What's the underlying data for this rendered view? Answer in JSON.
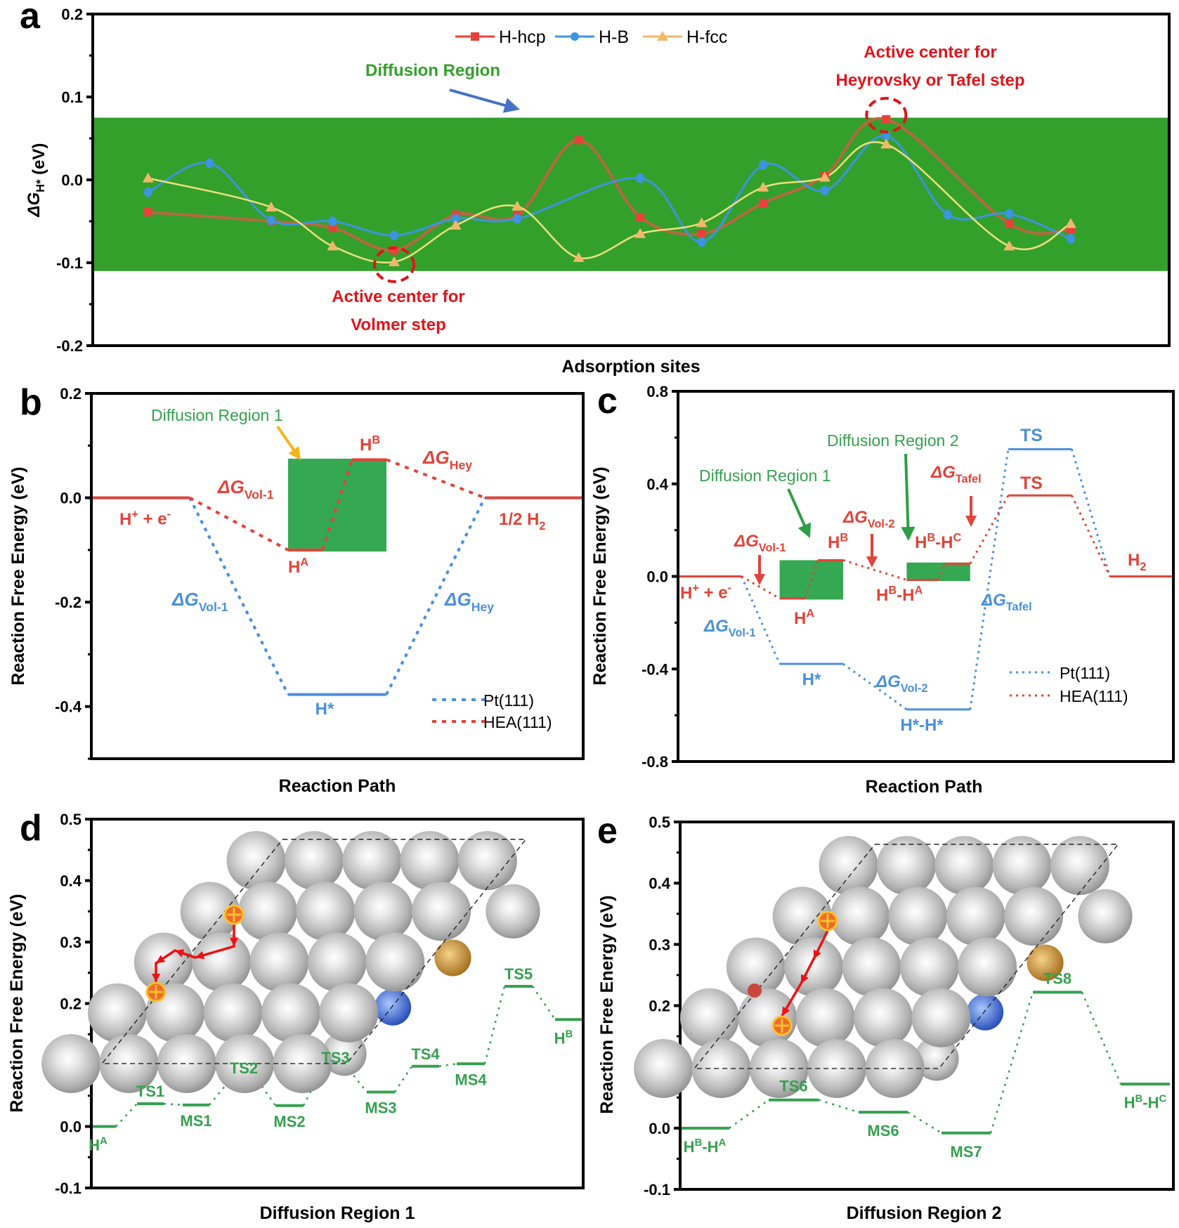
{
  "figure": {
    "panels": [
      "a",
      "b",
      "c",
      "d",
      "e"
    ]
  },
  "colors": {
    "hcp": "#e8413a",
    "hcp_line": "#b8683f",
    "bridge": "#3d94e0",
    "fcc": "#f1b86a",
    "fcc_line": "#f0e07a",
    "region_a": "#33a02c",
    "region_bc": "#34a853",
    "pt": "#4a90d9",
    "hea": "#e0443a",
    "diff_green": "#35a050",
    "annot_red": "#e0141a",
    "arrow_blue": "#4472c4",
    "arrow_orange": "#f5b51a"
  },
  "chart_data": [
    {
      "id": "a",
      "type": "line",
      "title": "",
      "xlabel": "Adsorption sites",
      "ylabel_main": "ΔG",
      "ylabel_sub": "H*",
      "ylabel_unit": " (eV)",
      "ylim": [
        -0.2,
        0.2
      ],
      "yticks": [
        "0.2",
        "0.1",
        "0.0",
        "-0.1",
        "-0.2"
      ],
      "ytick_values": [
        0.2,
        0.1,
        0.0,
        -0.1,
        -0.2
      ],
      "x": [
        1,
        2,
        3,
        4,
        5,
        6,
        7,
        8,
        9,
        10,
        11,
        12,
        13,
        14,
        15,
        16,
        17
      ],
      "xlim": [
        0.1,
        17.6
      ],
      "band": {
        "label": "Diffusion Region",
        "y0": -0.11,
        "y1": 0.075
      },
      "legend_position": "top-center",
      "series": [
        {
          "name": "H-hcp",
          "marker": "square",
          "values": [
            -0.039,
            null,
            -0.05,
            -0.058,
            -0.085,
            -0.042,
            -0.043,
            0.048,
            -0.045,
            -0.065,
            -0.028,
            0.005,
            0.073,
            null,
            -0.053,
            -0.06,
            null
          ]
        },
        {
          "name": "H-B",
          "marker": "circle",
          "values": [
            -0.015,
            0.02,
            -0.049,
            -0.05,
            -0.067,
            -0.047,
            -0.047,
            null,
            0.002,
            -0.075,
            0.018,
            -0.013,
            0.053,
            -0.042,
            -0.041,
            -0.071,
            null
          ]
        },
        {
          "name": "H-fcc",
          "marker": "triangle",
          "values": [
            0.002,
            null,
            -0.033,
            -0.08,
            -0.099,
            -0.055,
            -0.032,
            -0.094,
            -0.065,
            -0.052,
            -0.009,
            0.003,
            0.043,
            null,
            -0.08,
            -0.053,
            null
          ]
        }
      ],
      "annotations": [
        {
          "text_lines": [
            "Active center for",
            "Volmer step"
          ],
          "target_x": 5,
          "target_y": -0.099
        },
        {
          "text_lines": [
            "Active center for",
            "Heyrovsky or Tafel step"
          ],
          "target_x": 13,
          "target_y": 0.073
        }
      ]
    },
    {
      "id": "b",
      "type": "line",
      "subtype": "energy-profile",
      "xlabel": "Reaction Path",
      "ylabel": "Reaction Free Energy (eV)",
      "ylim": [
        -0.5,
        0.2
      ],
      "yticks": [
        "0.2",
        "0.0",
        "-0.2",
        "-0.4"
      ],
      "ytick_values": [
        0.2,
        0.0,
        -0.2,
        -0.4
      ],
      "box": {
        "label": "Diffusion Region 1",
        "x0": 2.0,
        "x1": 3.0,
        "y0": -0.103,
        "y1": 0.075
      },
      "series": [
        {
          "name": "Pt(111)",
          "levels": [
            {
              "label": "H⁺ + e⁻",
              "x0": 0,
              "x1": 1,
              "y": 0.0
            },
            {
              "label": "H*",
              "x0": 2,
              "x1": 3,
              "y": -0.377
            },
            {
              "label": "1/2 H₂",
              "x0": 4,
              "x1": 5,
              "y": 0.0
            }
          ]
        },
        {
          "name": "HEA(111)",
          "levels": [
            {
              "label": "H⁺ + e⁻",
              "x0": 0,
              "x1": 1,
              "y": 0.0
            },
            {
              "label": "Hᴬ",
              "x0": 2,
              "x1": 2.35,
              "y": -0.1
            },
            {
              "label": "Hᴮ",
              "x0": 2.65,
              "x1": 3.0,
              "y": 0.073
            },
            {
              "label": "1/2 H₂",
              "x0": 4,
              "x1": 5,
              "y": 0.0
            }
          ]
        }
      ],
      "texts": {
        "h_plus": "H",
        "h_plus_sup": "+",
        "h_plus_mid": " + e",
        "h_plus_sup2": "-",
        "half_h2": "1/2 H",
        "half_h2_sub": "2",
        "ha": "H",
        "ha_sup": "A",
        "hb": "H",
        "hb_sup": "B",
        "hstar": "H*",
        "dg": "ΔG",
        "vol1": "Vol-1",
        "hey": "Hey"
      }
    },
    {
      "id": "c",
      "type": "line",
      "subtype": "energy-profile",
      "xlabel": "Reaction Path",
      "ylabel": "Reaction Free Energy (eV)",
      "ylim": [
        -0.8,
        0.8
      ],
      "yticks": [
        "0.8",
        "0.4",
        "0.0",
        "-0.4",
        "-0.8"
      ],
      "ytick_values": [
        0.8,
        0.4,
        0.0,
        -0.4,
        -0.8
      ],
      "boxes": [
        {
          "label": "Diffusion Region 1",
          "x0": 1.6,
          "x1": 2.6,
          "y0": -0.1,
          "y1": 0.07
        },
        {
          "label": "Diffusion Region 2",
          "x0": 3.6,
          "x1": 4.6,
          "y0": -0.02,
          "y1": 0.06
        }
      ],
      "series": [
        {
          "name": "Pt(111)",
          "levels": [
            {
              "label": "H⁺ + e⁻",
              "x0": 0,
              "x1": 1,
              "y": 0.0
            },
            {
              "label": "H*",
              "x0": 1.6,
              "x1": 2.6,
              "y": -0.378
            },
            {
              "label": "H*-H*",
              "x0": 3.6,
              "x1": 4.6,
              "y": -0.575
            },
            {
              "label": "TS",
              "x0": 5.2,
              "x1": 6.2,
              "y": 0.55
            },
            {
              "label": "H₂",
              "x0": 6.8,
              "x1": 7.8,
              "y": 0.0
            }
          ]
        },
        {
          "name": "HEA(111)",
          "levels": [
            {
              "label": "H⁺ + e⁻",
              "x0": 0,
              "x1": 1,
              "y": 0.0
            },
            {
              "label": "Hᴬ",
              "x0": 1.6,
              "x1": 2.0,
              "y": -0.095
            },
            {
              "label": "Hᴮ",
              "x0": 2.2,
              "x1": 2.6,
              "y": 0.07
            },
            {
              "label": "Hᴮ-Hᴬ",
              "x0": 3.6,
              "x1": 4.1,
              "y": -0.015
            },
            {
              "label": "Hᴮ-Hᶜ",
              "x0": 4.2,
              "x1": 4.6,
              "y": 0.055
            },
            {
              "label": "TS",
              "x0": 5.2,
              "x1": 6.2,
              "y": 0.35
            },
            {
              "label": "H₂",
              "x0": 6.8,
              "x1": 7.8,
              "y": 0.0
            }
          ]
        }
      ],
      "texts": {
        "ts": "TS",
        "h2": "H",
        "h2_sub": "2",
        "hba": "H",
        "hba_sup1": "B",
        "hba_mid": "-H",
        "hba_sup2": "A",
        "hbc_sup2": "C",
        "hstar": "H*",
        "hstarhstar": "H*-H*",
        "dg": "ΔG",
        "vol1": "Vol-1",
        "vol2": "Vol-2",
        "tafel": "Tafel"
      }
    },
    {
      "id": "d",
      "type": "line",
      "subtype": "energy-profile",
      "xlabel": "Diffusion Region 1",
      "ylabel": "Reaction Free Energy (eV)",
      "ylim": [
        -0.1,
        0.5
      ],
      "yticks": [
        "0.5",
        "0.4",
        "0.3",
        "0.2",
        "0.1",
        "0.0",
        "-0.1"
      ],
      "ytick_values": [
        0.5,
        0.4,
        0.3,
        0.2,
        0.1,
        0.0,
        -0.1
      ],
      "levels": [
        {
          "label": "H",
          "sup": "A",
          "y": 0.0,
          "pos": "below"
        },
        {
          "label": "TS1",
          "y": 0.037,
          "pos": "above"
        },
        {
          "label": "MS1",
          "y": 0.035,
          "pos": "below"
        },
        {
          "label": "TS2",
          "y": 0.075,
          "pos": "above"
        },
        {
          "label": "MS2",
          "y": 0.034,
          "pos": "below"
        },
        {
          "label": "TS3",
          "y": 0.092,
          "pos": "above"
        },
        {
          "label": "MS3",
          "y": 0.056,
          "pos": "below"
        },
        {
          "label": "TS4",
          "y": 0.098,
          "pos": "above"
        },
        {
          "label": "MS4",
          "y": 0.102,
          "pos": "below"
        },
        {
          "label": "TS5",
          "y": 0.228,
          "pos": "above"
        },
        {
          "label": "H",
          "sup": "B",
          "y": 0.174,
          "pos": "below"
        }
      ],
      "inset": "HEA(111) surface with H diffusion path (5 steps)"
    },
    {
      "id": "e",
      "type": "line",
      "subtype": "energy-profile",
      "xlabel": "Diffusion Region 2",
      "ylabel": "Reaction Free Energy (eV)",
      "ylim": [
        -0.1,
        0.5
      ],
      "yticks": [
        "0.5",
        "0.4",
        "0.3",
        "0.2",
        "0.1",
        "0.0",
        "-0.1"
      ],
      "ytick_values": [
        0.5,
        0.4,
        0.3,
        0.2,
        0.1,
        0.0,
        -0.1
      ],
      "levels": [
        {
          "label": "H",
          "sup": "B",
          "mid": "-H",
          "sup2": "A",
          "y": 0.0,
          "pos": "below"
        },
        {
          "label": "TS6",
          "y": 0.046,
          "pos": "above"
        },
        {
          "label": "MS6",
          "y": 0.026,
          "pos": "below"
        },
        {
          "label": "MS7",
          "y": -0.008,
          "pos": "below"
        },
        {
          "label": "TS8",
          "y": 0.222,
          "pos": "above"
        },
        {
          "label": "H",
          "sup": "B",
          "mid": "-H",
          "sup2": "C",
          "y": 0.072,
          "pos": "below"
        }
      ],
      "inset": "HEA(111) surface with H diffusion path (2 steps)"
    }
  ],
  "labels": {
    "panel_a": "a",
    "panel_b": "b",
    "panel_c": "c",
    "panel_d": "d",
    "panel_e": "e",
    "legend_pt": "Pt(111)",
    "legend_hea": "HEA(111)",
    "diffusion_region": "Diffusion Region",
    "diffusion_region_1": "Diffusion Region 1",
    "diffusion_region_2": "Diffusion Region 2"
  }
}
